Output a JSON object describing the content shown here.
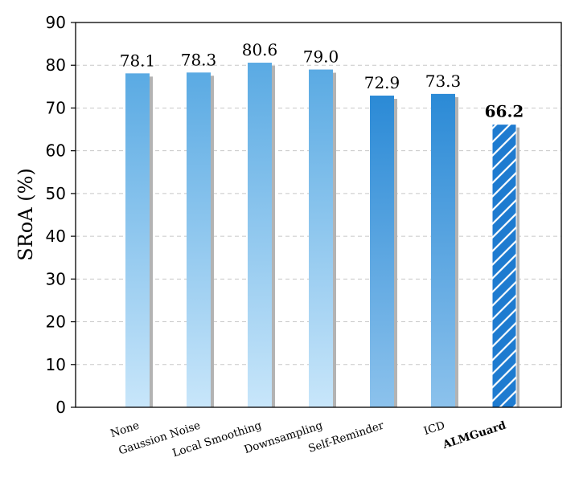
{
  "chart_data": {
    "type": "bar",
    "categories": [
      "None",
      "Gaussion Noise",
      "Local Smoothing",
      "Downsampling",
      "Self-Reminder",
      "ICD",
      "ALMGuard"
    ],
    "values": [
      78.1,
      78.3,
      80.6,
      79.0,
      72.9,
      73.3,
      66.2
    ],
    "value_labels": [
      "78.1",
      "78.3",
      "80.6",
      "79.0",
      "72.9",
      "73.3",
      "66.2"
    ],
    "highlight_index": 6,
    "title": "",
    "xlabel": "",
    "ylabel": "SRoA (%)",
    "ylim": [
      0,
      90
    ],
    "yticks": [
      "0",
      "10",
      "20",
      "30",
      "40",
      "50",
      "60",
      "70",
      "80",
      "90"
    ],
    "grid": "horizontal dashed",
    "colors": {
      "bar_top_light": "#5aaae3",
      "bar_bottom_light": "#c8e6fa",
      "bar_top_dark": "#2b8ad6",
      "bar_bottom_dark": "#8cc2ec",
      "highlight_fill": "#1e7bd0",
      "shadow": "#b3b3b3",
      "grid": "#c8c8c8"
    }
  }
}
